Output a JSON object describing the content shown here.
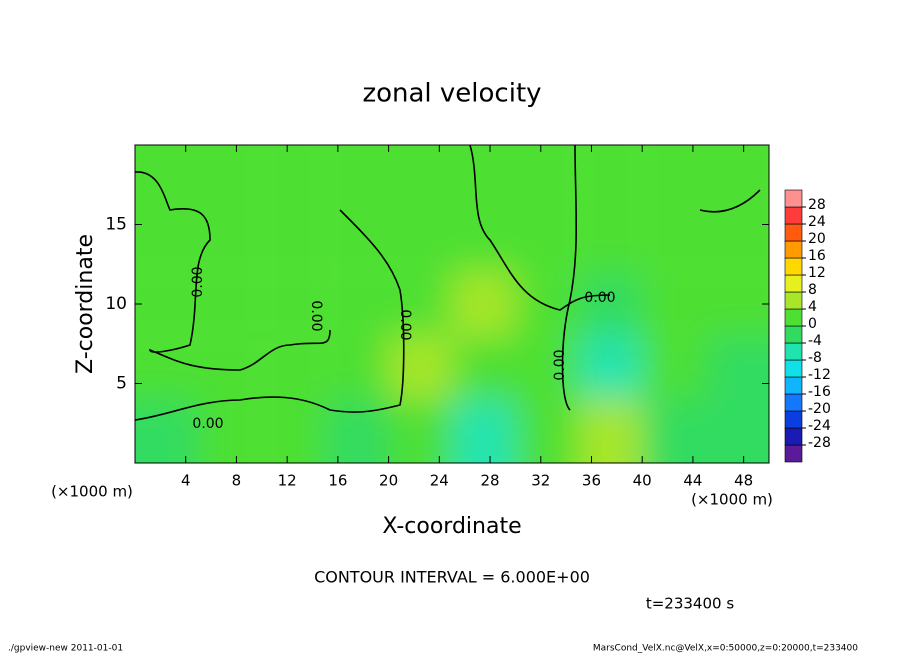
{
  "chart_data": {
    "type": "contour",
    "title": "zonal velocity",
    "x_label": "X-coordinate",
    "y_label": "Z-coordinate",
    "x_unit_left": "(×1000 m)",
    "x_unit_right": "(×1000 m)",
    "xlim": [
      0,
      50
    ],
    "xticks": [
      4,
      8,
      12,
      16,
      20,
      24,
      28,
      32,
      36,
      40,
      44,
      48
    ],
    "ylim": [
      0,
      20
    ],
    "yticks": [
      5,
      10,
      15
    ],
    "x": [
      2.5,
      7.5,
      12.5,
      17.5,
      22.5,
      27.5,
      32.5,
      37.5,
      42.5,
      47.5
    ],
    "z": [
      2,
      6,
      10,
      14,
      18
    ],
    "values": [
      [
        -2,
        1,
        0,
        -3,
        1,
        -7,
        1,
        4,
        -3,
        -3
      ],
      [
        1,
        1,
        0,
        2,
        4,
        3,
        1,
        -6,
        0,
        -2
      ],
      [
        2,
        1,
        2,
        3,
        3,
        7,
        2,
        -2,
        2,
        2
      ],
      [
        1,
        2,
        2,
        3,
        2,
        3,
        2,
        3,
        2,
        2
      ],
      [
        2,
        2,
        2,
        3,
        2,
        2,
        1,
        2,
        2,
        0
      ]
    ],
    "levels": [
      -28,
      -24,
      -20,
      -16,
      -12,
      -8,
      -4,
      0,
      4,
      8,
      12,
      16,
      20,
      24,
      28
    ],
    "colors": [
      "#5a1a9a",
      "#1a1ab4",
      "#0a3ee0",
      "#1478ff",
      "#10b4ff",
      "#10e0e8",
      "#20e4b0",
      "#30dc60",
      "#4ee030",
      "#a8e62a",
      "#e6f01e",
      "#ffd800",
      "#ff9a00",
      "#ff5a10",
      "#ff3c3c",
      "#ff9090"
    ],
    "contour_labels": [
      "0.00",
      "0.00",
      "0.00",
      "0.00",
      "0.00",
      "0.00"
    ],
    "contour_interval": "CONTOUR INTERVAL = 6.000E+00",
    "time": "t=233400 s",
    "footer_left": "./gpview-new  2011-01-01",
    "footer_right": "MarsCond_VelX.nc@VelX,x=0:50000,z=0:20000,t=233400"
  }
}
